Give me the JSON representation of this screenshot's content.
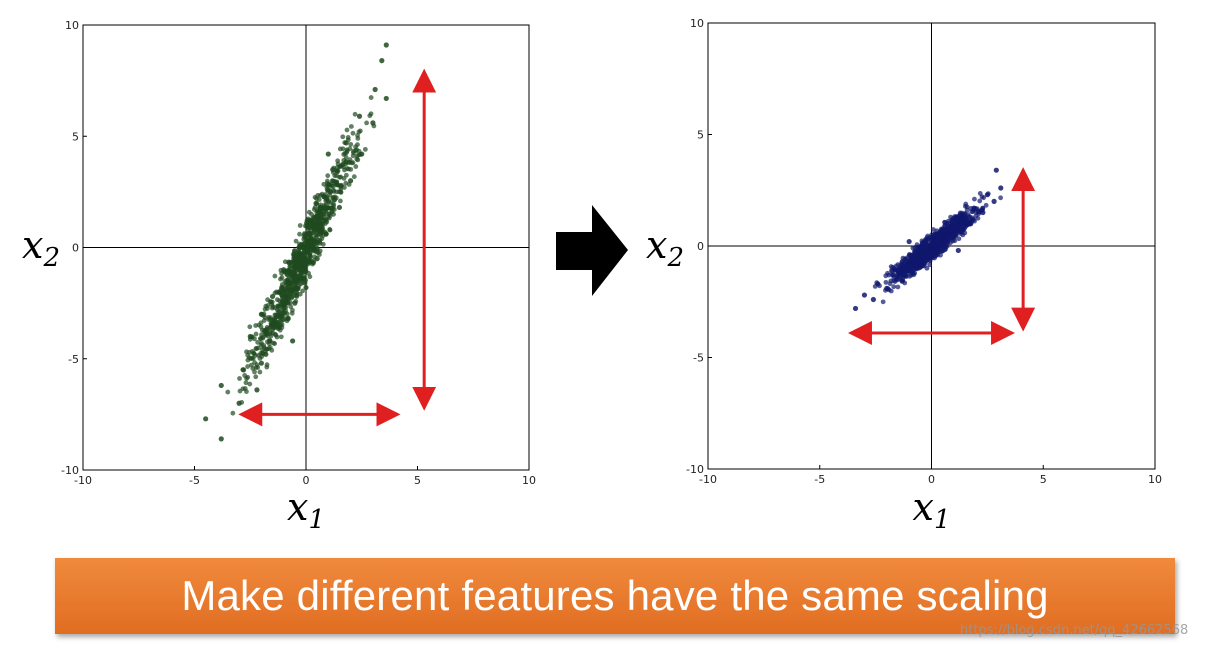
{
  "banner": {
    "text": "Make different features have the same scaling"
  },
  "watermark": "https://blog.csdn.net/qq_42662568",
  "chart_data": [
    {
      "type": "scatter",
      "xlabel": "x1",
      "ylabel": "x2",
      "xlim": [
        -10,
        10
      ],
      "ylim": [
        -10,
        10
      ],
      "xticks": [
        -10,
        -5,
        0,
        5,
        10
      ],
      "yticks": [
        -10,
        -5,
        0,
        5,
        10
      ],
      "point_color": "#1f4a1f",
      "series": [
        {
          "points": [
            [
              -3.8,
              -8.6
            ],
            [
              -4.5,
              -7.7
            ],
            [
              -3.8,
              -6.2
            ],
            [
              -3.0,
              -7.0
            ],
            [
              -2.8,
              -5.5
            ],
            [
              -2.0,
              -5.2
            ],
            [
              -2.5,
              -4.0
            ],
            [
              -1.8,
              -4.8
            ],
            [
              -1.2,
              -3.6
            ],
            [
              -2.0,
              -3.0
            ],
            [
              -0.8,
              -3.2
            ],
            [
              -1.5,
              -2.2
            ],
            [
              -0.5,
              -2.5
            ],
            [
              -1.0,
              -1.0
            ],
            [
              0.0,
              -1.8
            ],
            [
              -0.3,
              0.0
            ],
            [
              0.5,
              -0.5
            ],
            [
              0.2,
              1.2
            ],
            [
              0.9,
              0.6
            ],
            [
              0.8,
              2.3
            ],
            [
              1.5,
              1.8
            ],
            [
              1.2,
              3.5
            ],
            [
              2.0,
              3.0
            ],
            [
              1.8,
              4.7
            ],
            [
              2.5,
              4.2
            ],
            [
              2.4,
              5.9
            ],
            [
              3.0,
              5.6
            ],
            [
              3.1,
              7.1
            ],
            [
              3.6,
              6.7
            ],
            [
              3.4,
              8.4
            ],
            [
              3.6,
              9.1
            ],
            [
              -2.2,
              -6.4
            ],
            [
              1.0,
              4.2
            ],
            [
              -0.6,
              -4.2
            ]
          ]
        }
      ],
      "range_arrows": {
        "horizontal": [
          -2.5,
          3.7
        ],
        "vertical": [
          -6.8,
          7.5
        ]
      }
    },
    {
      "type": "scatter",
      "xlabel": "x1",
      "ylabel": "x2",
      "xlim": [
        -10,
        10
      ],
      "ylim": [
        -10,
        10
      ],
      "xticks": [
        -10,
        -5,
        0,
        5,
        10
      ],
      "yticks": [
        -10,
        -5,
        0,
        5,
        10
      ],
      "point_color": "#10186e",
      "series": [
        {
          "points": [
            [
              -3.4,
              -2.8
            ],
            [
              -3.0,
              -2.2
            ],
            [
              -2.6,
              -2.4
            ],
            [
              -2.4,
              -1.7
            ],
            [
              -2.0,
              -1.9
            ],
            [
              -1.7,
              -1.3
            ],
            [
              -1.3,
              -1.5
            ],
            [
              -1.1,
              -0.8
            ],
            [
              -0.7,
              -1.0
            ],
            [
              -0.5,
              -0.3
            ],
            [
              -0.1,
              -0.5
            ],
            [
              0.1,
              0.2
            ],
            [
              0.5,
              0.0
            ],
            [
              0.7,
              0.7
            ],
            [
              1.1,
              0.5
            ],
            [
              1.3,
              1.2
            ],
            [
              1.7,
              1.0
            ],
            [
              1.9,
              1.7
            ],
            [
              2.3,
              1.5
            ],
            [
              2.5,
              2.3
            ],
            [
              2.8,
              2.0
            ],
            [
              2.9,
              3.4
            ],
            [
              3.1,
              2.6
            ],
            [
              -1.0,
              0.2
            ],
            [
              1.2,
              -0.2
            ]
          ]
        }
      ],
      "range_arrows": {
        "horizontal": [
          -3.2,
          3.2
        ],
        "vertical": [
          -3.3,
          3.0
        ]
      }
    }
  ]
}
